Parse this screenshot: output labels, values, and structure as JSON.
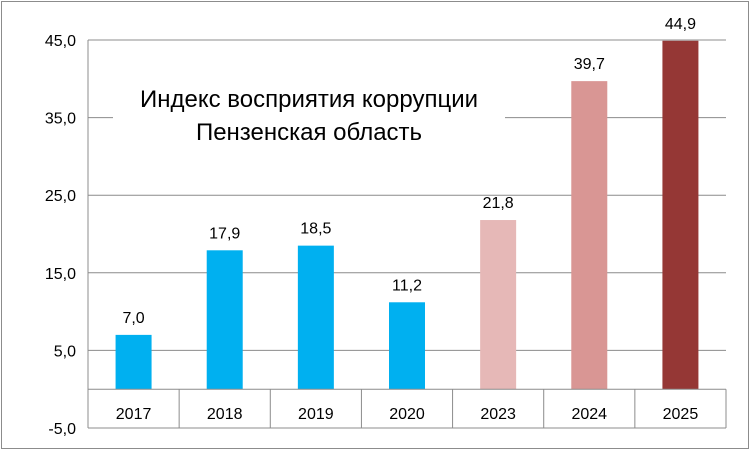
{
  "chart_data": {
    "type": "bar",
    "title_lines": [
      "Индекс восприятия коррупции",
      "Пензенская область"
    ],
    "xlabel": "",
    "ylabel": "",
    "categories": [
      "2017",
      "2018",
      "2019",
      "2020",
      "2023",
      "2024",
      "2025"
    ],
    "values": [
      7.0,
      17.9,
      18.5,
      11.2,
      21.8,
      39.7,
      44.9
    ],
    "data_labels": [
      "7,0",
      "17,9",
      "18,5",
      "11,2",
      "21,8",
      "39,7",
      "44,9"
    ],
    "bar_colors": [
      "#00b0f0",
      "#00b0f0",
      "#00b0f0",
      "#00b0f0",
      "#e6b8b7",
      "#d99694",
      "#953735"
    ],
    "ylim": [
      -5,
      45
    ],
    "yticks": [
      -5,
      5,
      15,
      25,
      35,
      45
    ],
    "ytick_labels": [
      "-5,0",
      "5,0",
      "15,0",
      "25,0",
      "35,0",
      "45,0"
    ],
    "grid": "horizontal",
    "legend": "none"
  }
}
